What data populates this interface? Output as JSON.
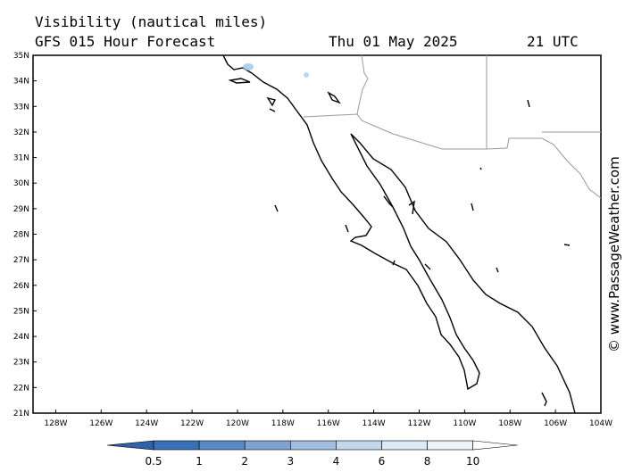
{
  "header": {
    "title": "Visibility (nautical miles)",
    "model": "GFS 015 Hour Forecast",
    "date": "Thu 01 May 2025",
    "time": "21 UTC"
  },
  "map": {
    "lat_labels": [
      "35N",
      "34N",
      "33N",
      "32N",
      "31N",
      "30N",
      "29N",
      "28N",
      "27N",
      "26N",
      "25N",
      "24N",
      "23N",
      "22N",
      "21N"
    ],
    "lon_labels": [
      "128W",
      "126W",
      "124W",
      "122W",
      "120W",
      "118W",
      "116W",
      "114W",
      "112W",
      "110W",
      "108W",
      "106W",
      "104W"
    ]
  },
  "colorbar": {
    "labels": [
      "0.5",
      "1",
      "2",
      "3",
      "4",
      "6",
      "8",
      "10"
    ]
  },
  "watermark": "© www.PassageWeather.com"
}
